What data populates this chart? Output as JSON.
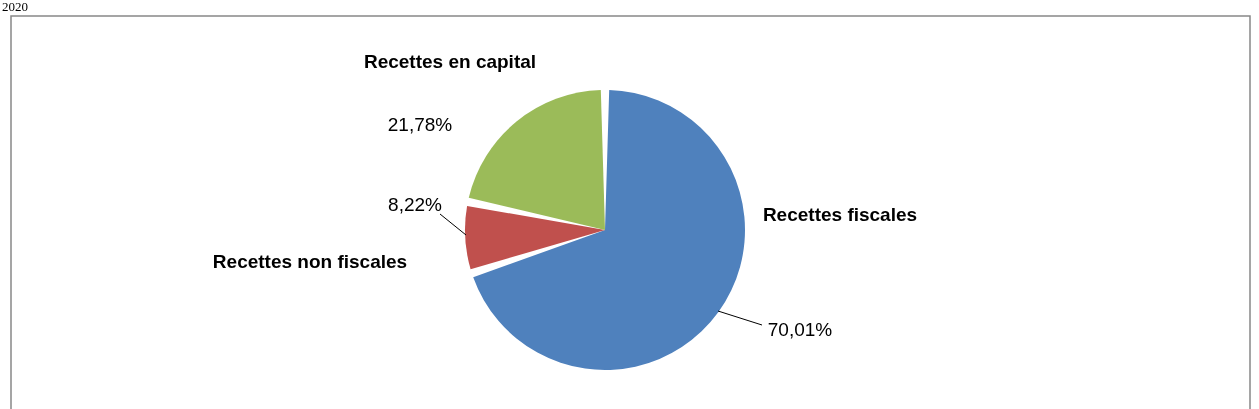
{
  "chart_data": {
    "type": "pie",
    "categories": [
      "Recettes fiscales",
      "Recettes non fiscales",
      "Recettes en capital"
    ],
    "values": [
      70.01,
      8.22,
      21.78
    ],
    "colors": [
      "#4f81bd",
      "#c0504d",
      "#9bbb59"
    ],
    "value_labels": [
      "70,01%",
      "8,22%",
      "21,78%"
    ],
    "annotations": [
      "2020"
    ],
    "legend": false
  }
}
